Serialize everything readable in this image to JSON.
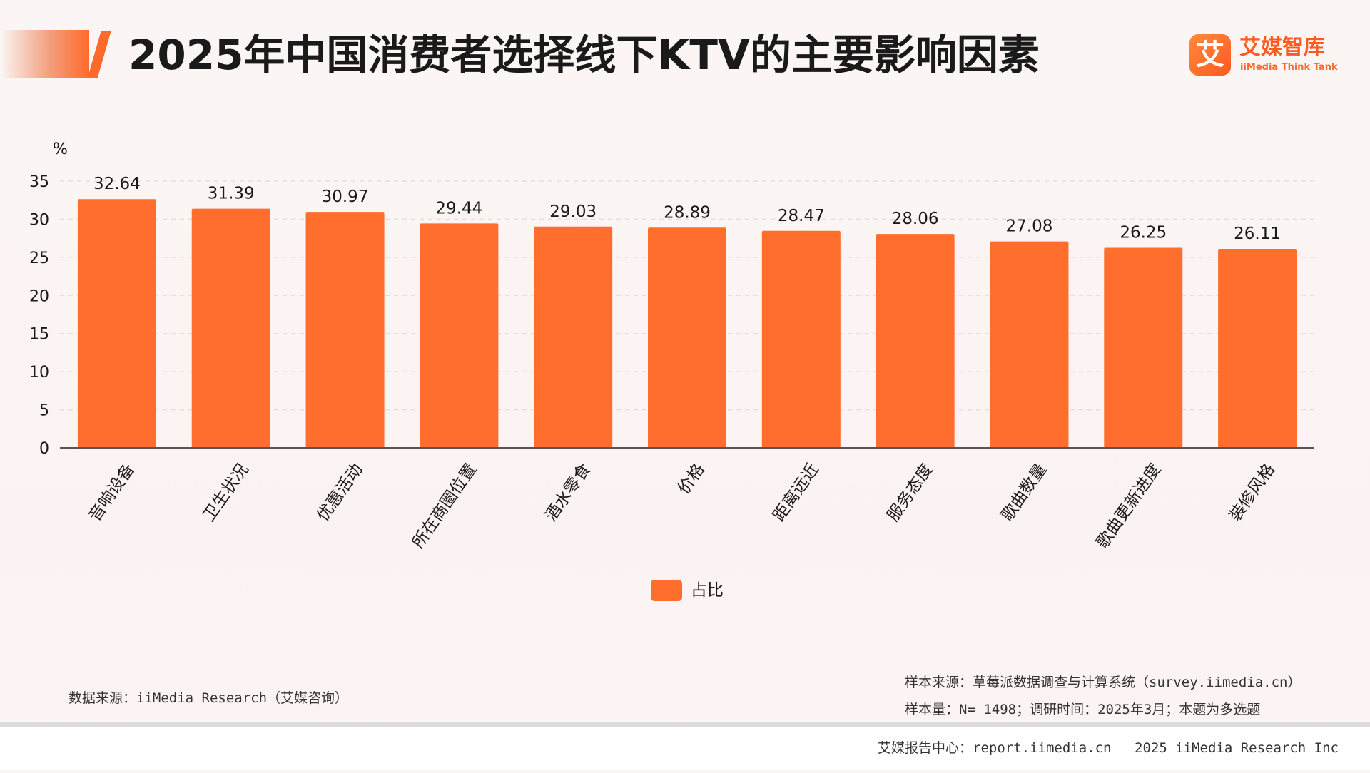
{
  "header": {
    "title": "2025年中国消费者选择线下KTV的主要影响因素"
  },
  "brand": {
    "mark": "艾",
    "name": "艾媒智库",
    "sub": "iiMedia Think Tank",
    "icon": "brand-logo-icon"
  },
  "colors": {
    "accent": "#ff6e2c",
    "brand": "#ff5a1f"
  },
  "chart_data": {
    "type": "bar",
    "categories": [
      "音响设备",
      "卫生状况",
      "优惠活动",
      "所在商圈位置",
      "酒水零食",
      "价格",
      "距离远近",
      "服务态度",
      "歌曲数量",
      "歌曲更新进度",
      "装修风格"
    ],
    "series": [
      {
        "name": "占比",
        "values": [
          32.64,
          31.39,
          30.97,
          29.44,
          29.03,
          28.89,
          28.47,
          28.06,
          27.08,
          26.25,
          26.11
        ]
      }
    ],
    "ylabel": "%",
    "ylim": [
      0,
      35
    ],
    "yticks": [
      0,
      5,
      10,
      15,
      20,
      25,
      30,
      35
    ],
    "grid": true,
    "legend": "bottom-center"
  },
  "legend": {
    "label": "占比"
  },
  "footer": {
    "data_source": "数据来源：iiMedia Research（艾媒咨询）",
    "sample_source": "样本来源：草莓派数据调查与计算系统（survey.iimedia.cn）",
    "sample_size": "样本量：N= 1498；调研时间：2025年3月；本题为多选题",
    "report_center": "艾媒报告中心：report.iimedia.cn",
    "copyright": "2025 iiMedia Research Inc"
  }
}
